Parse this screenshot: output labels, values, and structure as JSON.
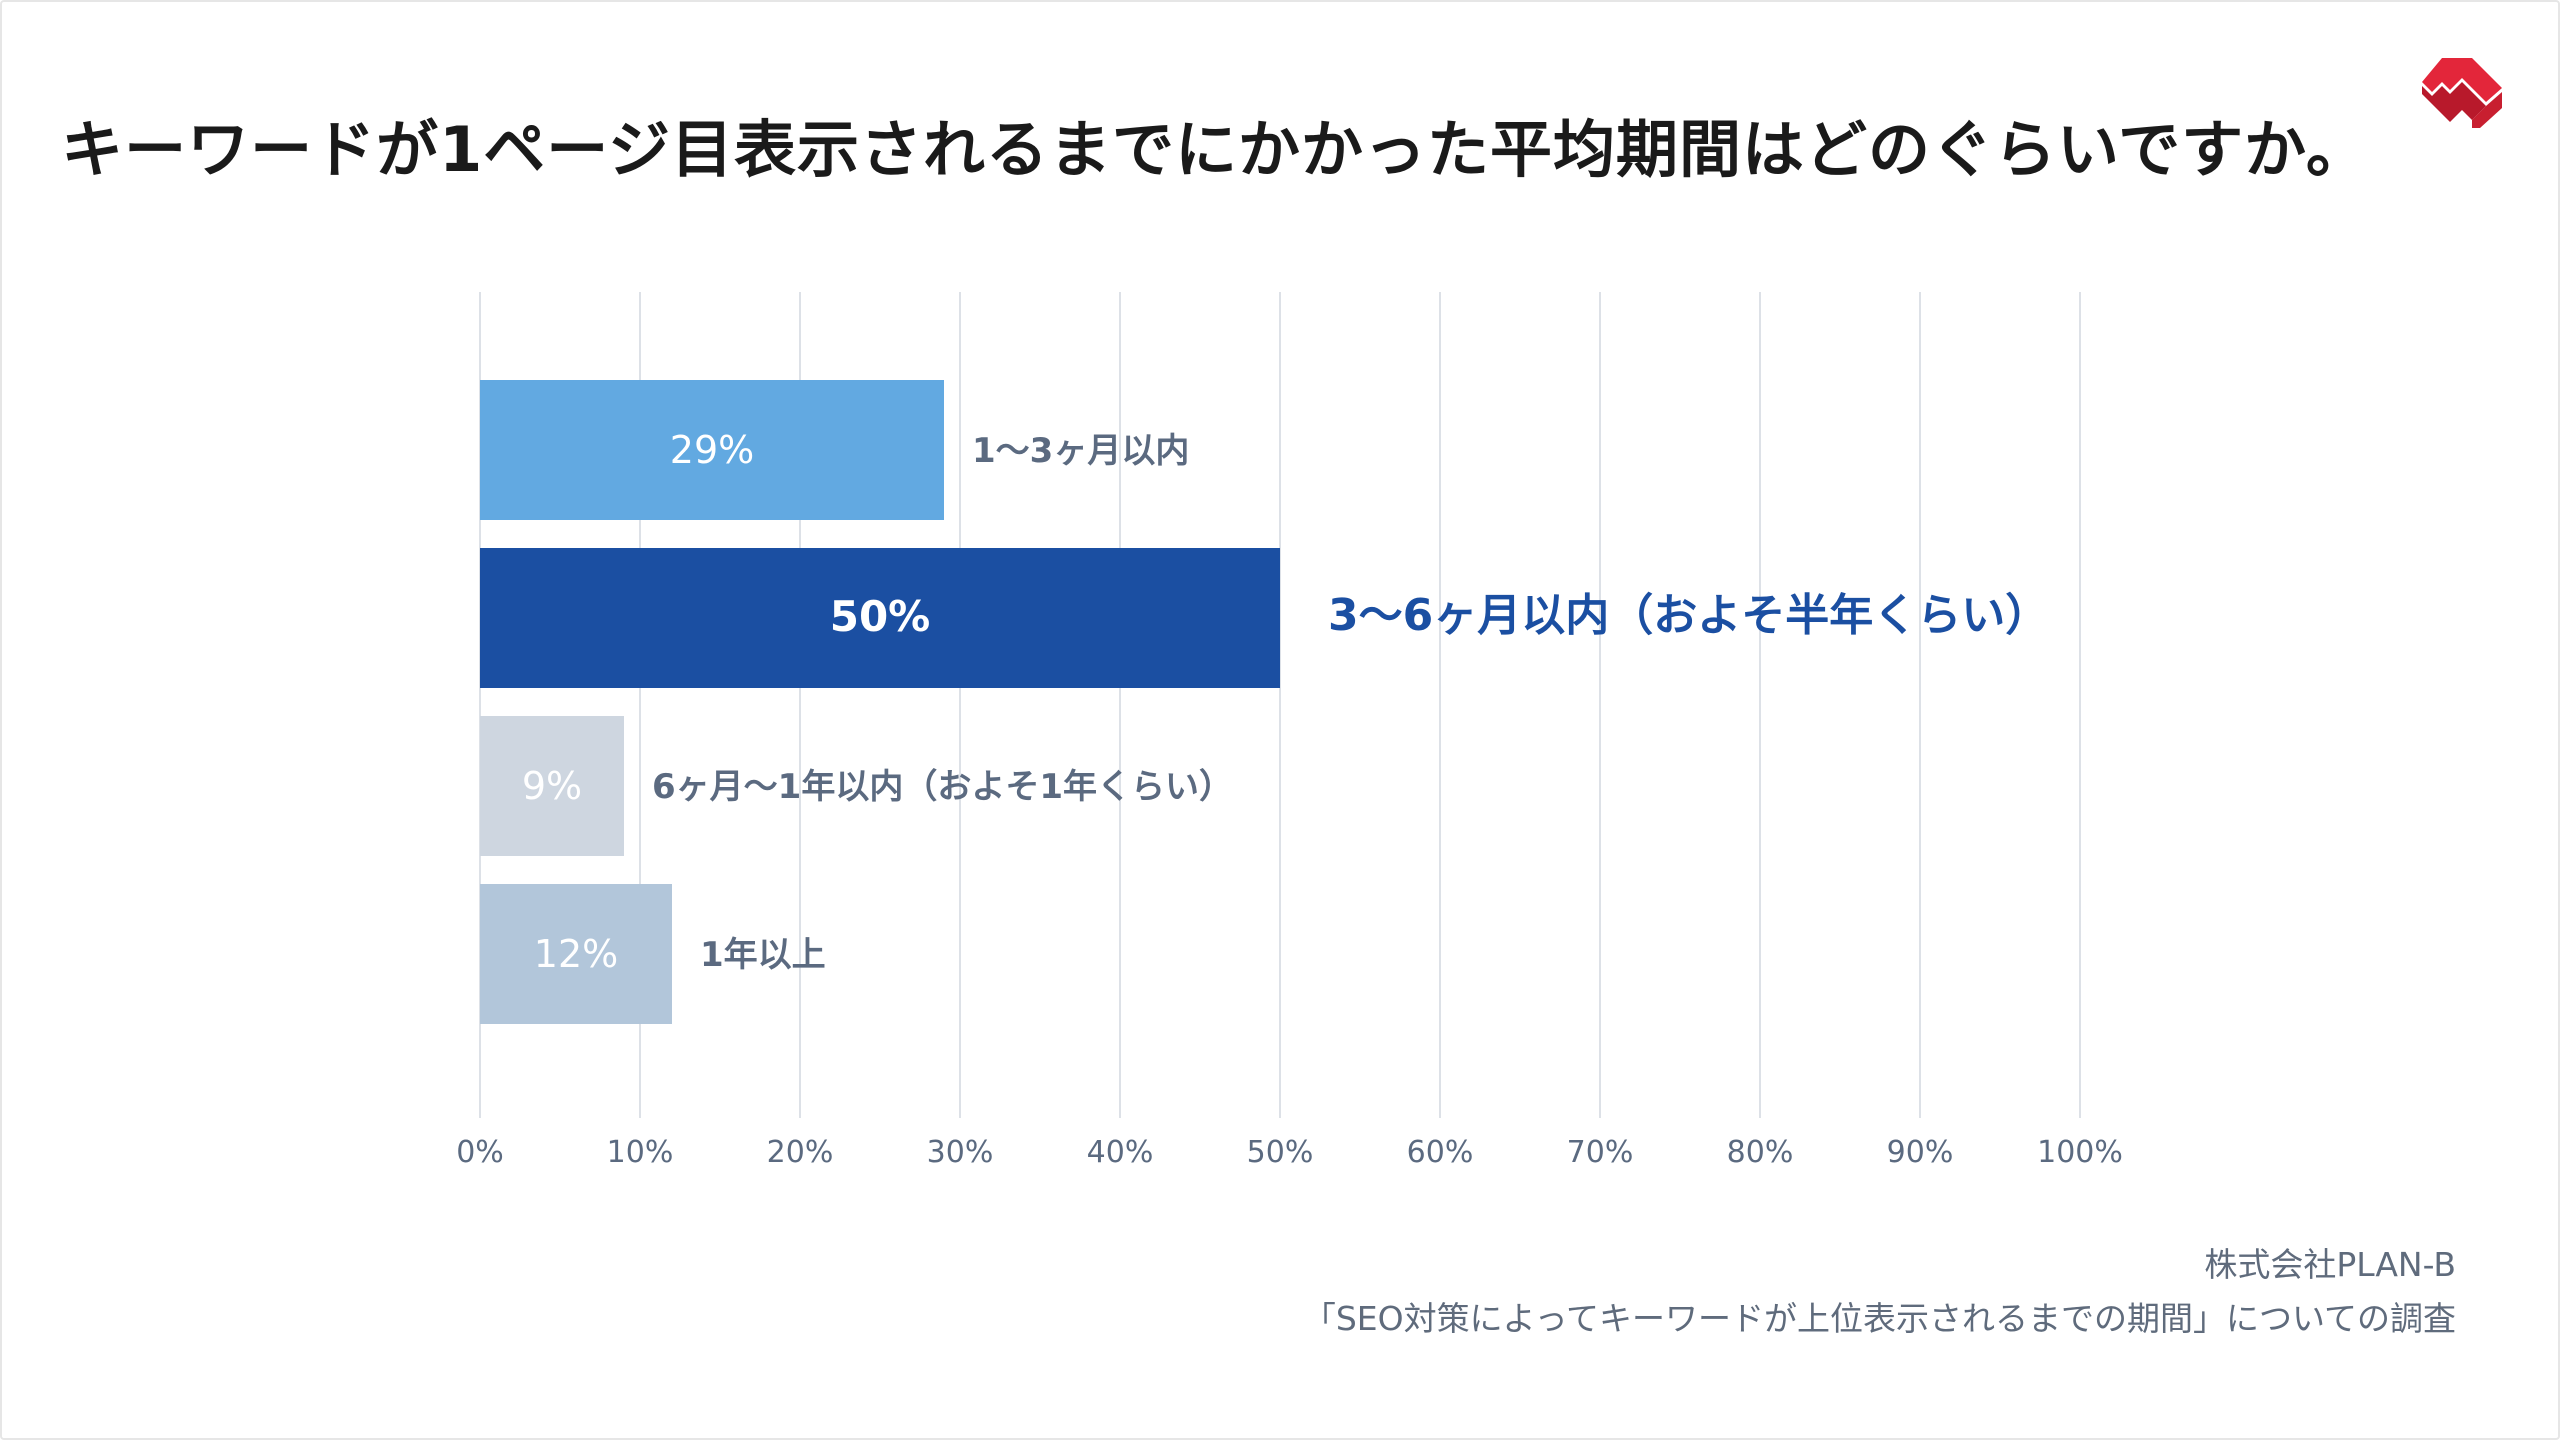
{
  "title": "キーワードが1ページ目表示されるまでにかかった平均期間はどのぐらいですか。",
  "logo": {
    "icon": "plan-b-logo-icon",
    "colors": [
      "#e3263a",
      "#b8192b"
    ]
  },
  "source": {
    "company": "株式会社PLAN-B",
    "survey": "「SEO対策によってキーワードが上位表示されるまでの期間」についての調査"
  },
  "chart_data": {
    "type": "bar",
    "orientation": "horizontal",
    "xlim": [
      0,
      100
    ],
    "ticks": [
      "0%",
      "10%",
      "20%",
      "30%",
      "40%",
      "50%",
      "60%",
      "70%",
      "80%",
      "90%",
      "100%"
    ],
    "grid": true,
    "bars": [
      {
        "category": "1〜3ヶ月以内",
        "value": 29,
        "value_label": "29%",
        "color": "#62a9e1",
        "label_color": "#5b6a80",
        "highlight": false
      },
      {
        "category": "3〜6ヶ月以内（およそ半年くらい）",
        "value": 50,
        "value_label": "50%",
        "color": "#1b4fa2",
        "label_color": "#1b4fa2",
        "highlight": true
      },
      {
        "category": "6ヶ月〜1年以内（およそ1年くらい）",
        "value": 9,
        "value_label": "9%",
        "color": "#ced6e0",
        "label_color": "#5b6a80",
        "highlight": false
      },
      {
        "category": "1年以上",
        "value": 12,
        "value_label": "12%",
        "color": "#b2c6da",
        "label_color": "#5b6a80",
        "highlight": false
      }
    ]
  }
}
